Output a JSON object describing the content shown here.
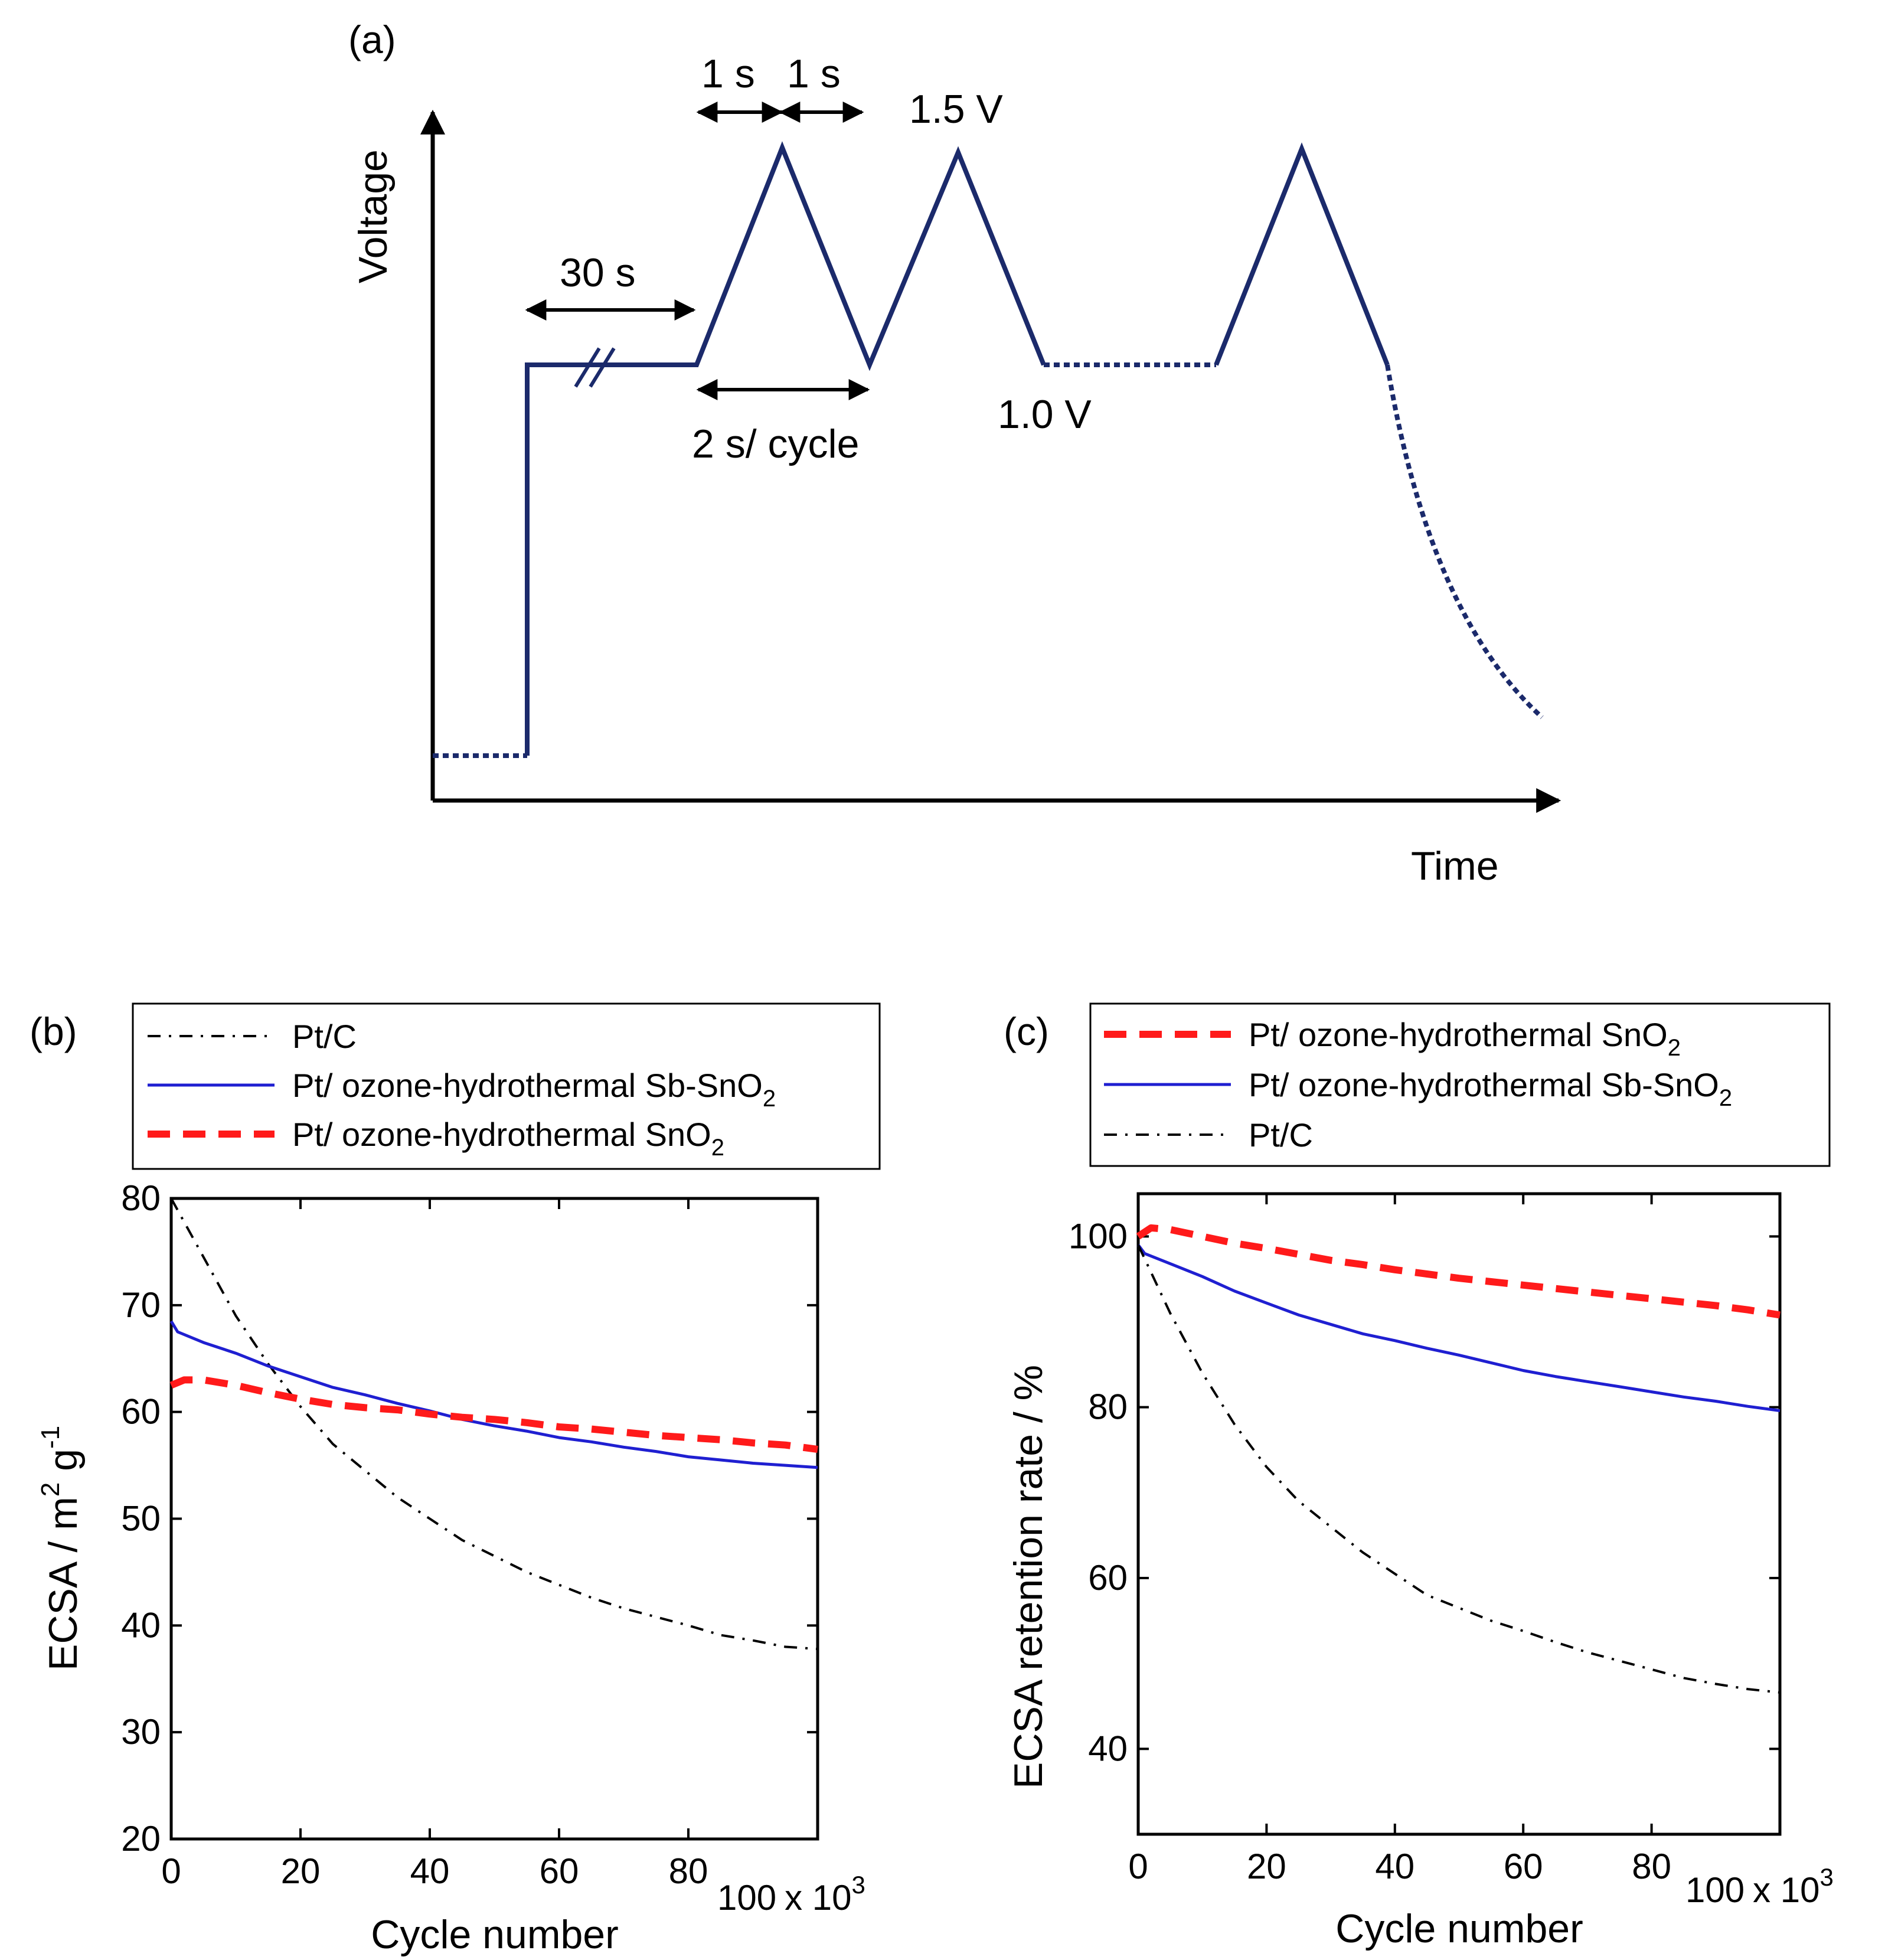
{
  "panel_a": {
    "label": "(a)",
    "ylabel": "Voltage",
    "xlabel": "Time",
    "hold_label": "30 s",
    "up_label": "1 s",
    "down_label": "1 s",
    "cycle_label": "2 s/ cycle",
    "upper_label": "1.5 V",
    "lower_label": "1.0 V",
    "line_color": "#1b2a6b"
  },
  "chart_data": [
    {
      "id": "b",
      "type": "line",
      "panel_label": "(b)",
      "xlabel": "Cycle number",
      "ylabel": "ECSA / m",
      "ylabel_sup1": "2",
      "ylabel_unit": " g",
      "ylabel_sup2": "-1",
      "xlim": [
        0,
        100
      ],
      "ylim": [
        20,
        80
      ],
      "xticks": [
        0,
        20,
        40,
        60,
        80
      ],
      "xtick_last": "100",
      "x_multiplier": "x 10",
      "x_multiplier_exp": "3",
      "yticks": [
        20,
        30,
        40,
        50,
        60,
        70,
        80
      ],
      "legend": [
        {
          "name": "Pt/C",
          "style": "dashdot",
          "color": "#000000"
        },
        {
          "name": "Pt/ ozone-hydrothermal Sb-SnO",
          "sub": "2",
          "style": "solid",
          "color": "#1f1fd1"
        },
        {
          "name": "Pt/ ozone-hydrothermal SnO",
          "sub": "2",
          "style": "dashed",
          "color": "#ff1a1a"
        }
      ],
      "series": [
        {
          "name": "Pt/C",
          "style": "dashdot",
          "color": "#000000",
          "x": [
            0,
            5,
            10,
            15,
            20,
            25,
            30,
            35,
            40,
            45,
            50,
            55,
            60,
            65,
            70,
            75,
            80,
            85,
            90,
            95,
            100
          ],
          "y": [
            80,
            74.5,
            69,
            64.5,
            60.5,
            57,
            54.5,
            52,
            50,
            48,
            46.5,
            45,
            43.8,
            42.6,
            41.6,
            40.8,
            40,
            39.1,
            38.6,
            38,
            37.8
          ]
        },
        {
          "name": "Pt/ ozone-hydrothermal Sb-SnO2",
          "style": "solid",
          "color": "#1f1fd1",
          "x": [
            0,
            1,
            5,
            10,
            15,
            20,
            25,
            30,
            35,
            40,
            45,
            50,
            55,
            60,
            65,
            70,
            75,
            80,
            85,
            90,
            95,
            100
          ],
          "y": [
            68.5,
            67.5,
            66.5,
            65.5,
            64.3,
            63.3,
            62.3,
            61.6,
            60.8,
            60.1,
            59.3,
            58.7,
            58.2,
            57.6,
            57.2,
            56.7,
            56.3,
            55.8,
            55.5,
            55.2,
            55,
            54.8
          ]
        },
        {
          "name": "Pt/ ozone-hydrothermal SnO2",
          "style": "dashed",
          "color": "#ff1a1a",
          "x": [
            0,
            2,
            5,
            10,
            15,
            20,
            25,
            30,
            35,
            40,
            45,
            50,
            55,
            60,
            65,
            70,
            75,
            80,
            85,
            90,
            95,
            100
          ],
          "y": [
            62.5,
            63,
            63,
            62.5,
            61.8,
            61.2,
            60.7,
            60.4,
            60.2,
            59.8,
            59.5,
            59.3,
            59,
            58.6,
            58.4,
            58.1,
            57.8,
            57.6,
            57.4,
            57.1,
            56.9,
            56.5
          ]
        }
      ]
    },
    {
      "id": "c",
      "type": "line",
      "panel_label": "(c)",
      "xlabel": "Cycle number",
      "ylabel": "ECSA retention rate / %",
      "xlim": [
        0,
        100
      ],
      "ylim": [
        30,
        105
      ],
      "xticks": [
        0,
        20,
        40,
        60,
        80
      ],
      "xtick_last": "100",
      "x_multiplier": "x 10",
      "x_multiplier_exp": "3",
      "yticks": [
        40,
        60,
        80,
        100
      ],
      "legend": [
        {
          "name": "Pt/ ozone-hydrothermal SnO",
          "sub": "2",
          "style": "dashed",
          "color": "#ff1a1a"
        },
        {
          "name": "Pt/ ozone-hydrothermal Sb-SnO",
          "sub": "2",
          "style": "solid",
          "color": "#1f1fd1"
        },
        {
          "name": "Pt/C",
          "style": "dashdot",
          "color": "#000000"
        }
      ],
      "series": [
        {
          "name": "Pt/ ozone-hydrothermal SnO2",
          "style": "dashed",
          "color": "#ff1a1a",
          "x": [
            0,
            2,
            5,
            10,
            15,
            20,
            25,
            30,
            35,
            40,
            45,
            50,
            55,
            60,
            65,
            70,
            75,
            80,
            85,
            90,
            95,
            100
          ],
          "y": [
            100,
            101,
            100.8,
            100,
            99.2,
            98.6,
            97.9,
            97.2,
            96.7,
            96.1,
            95.6,
            95.1,
            94.7,
            94.3,
            93.9,
            93.5,
            93.1,
            92.7,
            92.3,
            91.9,
            91.4,
            90.8
          ]
        },
        {
          "name": "Pt/ ozone-hydrothermal Sb-SnO2",
          "style": "solid",
          "color": "#1f1fd1",
          "x": [
            0,
            1,
            5,
            10,
            15,
            20,
            25,
            30,
            35,
            40,
            45,
            50,
            55,
            60,
            65,
            70,
            75,
            80,
            85,
            90,
            95,
            100
          ],
          "y": [
            99,
            98,
            96.8,
            95.3,
            93.6,
            92.2,
            90.8,
            89.7,
            88.6,
            87.8,
            86.9,
            86.1,
            85.2,
            84.3,
            83.6,
            83,
            82.4,
            81.8,
            81.2,
            80.7,
            80.1,
            79.6
          ]
        },
        {
          "name": "Pt/C",
          "style": "dashdot",
          "color": "#000000",
          "x": [
            0,
            5,
            10,
            15,
            20,
            25,
            30,
            35,
            40,
            45,
            50,
            55,
            60,
            65,
            70,
            75,
            80,
            85,
            90,
            95,
            100
          ],
          "y": [
            99,
            91,
            84,
            78,
            73,
            69,
            66,
            63,
            60.5,
            58,
            56.5,
            55,
            53.8,
            52.5,
            51.3,
            50.3,
            49.3,
            48.3,
            47.6,
            47,
            46.6
          ]
        }
      ]
    }
  ]
}
